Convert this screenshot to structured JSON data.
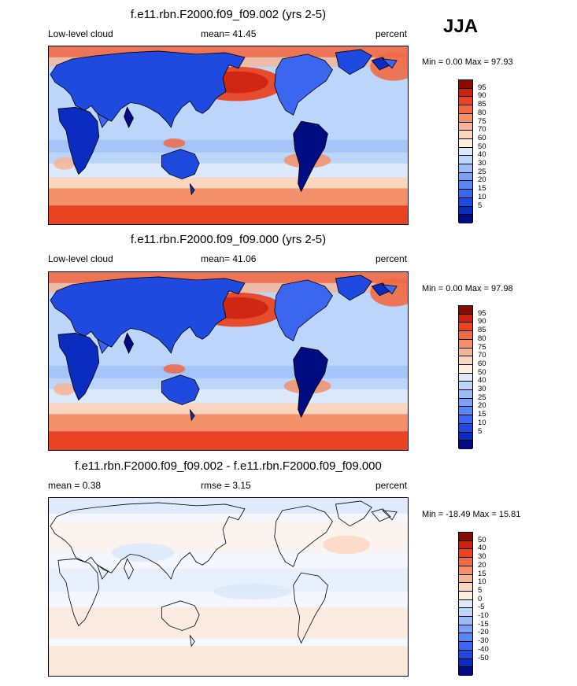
{
  "season": "JJA",
  "colors": {
    "full": [
      "#000c82",
      "#0a2cc0",
      "#1f4ae0",
      "#3a66f0",
      "#5a86f5",
      "#7aa0f8",
      "#9bbcf9",
      "#bcd6fb",
      "#dce9fc",
      "#ffeedd",
      "#fbd6bf",
      "#f8b593",
      "#f5916a",
      "#f06a44",
      "#e84422",
      "#cc2310",
      "#8e0a00"
    ],
    "diff": [
      "#000c82",
      "#0a2cc0",
      "#1f4ae0",
      "#3a66f0",
      "#5a86f5",
      "#7aa0f8",
      "#9bbcf9",
      "#bcd6fb",
      "#dce9fc",
      "#ffeedd",
      "#fbd6bf",
      "#f8b593",
      "#f5916a",
      "#f06a44",
      "#e84422",
      "#cc2310",
      "#8e0a00"
    ]
  },
  "panels": [
    {
      "title": "f.e11.rbn.F2000.f09_f09.002 (yrs 2-5)",
      "left_label": "Low-level cloud",
      "center_label": "mean=  41.45",
      "right_label": "percent",
      "minmax": "Min =   0.00 Max =  97.93",
      "colorbar": [
        "95",
        "90",
        "85",
        "80",
        "75",
        "70",
        "60",
        "50",
        "40",
        "30",
        "25",
        "20",
        "15",
        "10",
        "5"
      ],
      "palette": "full"
    },
    {
      "title": "f.e11.rbn.F2000.f09_f09.000 (yrs 2-5)",
      "left_label": "Low-level cloud",
      "center_label": "mean=  41.06",
      "right_label": "percent",
      "minmax": "Min =   0.00 Max =  97.98",
      "colorbar": [
        "95",
        "90",
        "85",
        "80",
        "75",
        "70",
        "60",
        "50",
        "40",
        "30",
        "25",
        "20",
        "15",
        "10",
        "5"
      ],
      "palette": "full"
    },
    {
      "title": "f.e11.rbn.F2000.f09_f09.002 - f.e11.rbn.F2000.f09_f09.000",
      "left_label": "mean =   0.38",
      "center_label": "rmse =   3.15",
      "right_label": "percent",
      "minmax": "Min = -18.49 Max =  15.81",
      "colorbar": [
        "50",
        "40",
        "30",
        "20",
        "15",
        "10",
        "5",
        "0",
        "-5",
        "-10",
        "-15",
        "-20",
        "-30",
        "-40",
        "-50"
      ],
      "palette": "diff"
    }
  ]
}
